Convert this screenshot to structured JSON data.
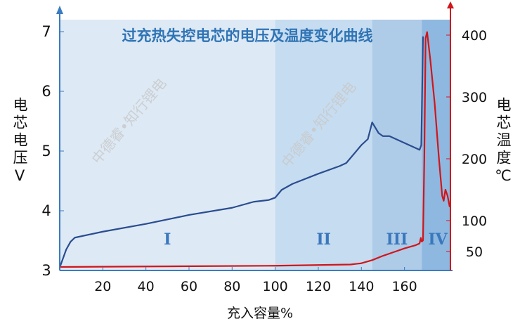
{
  "chart_data": {
    "type": "line",
    "title": "过充热失控电芯的电压及温度变化曲线",
    "xlabel": "充入容量%",
    "ylabel_left": "电芯电压V",
    "ylabel_right": "电芯温度℃",
    "xlim": [
      0,
      181
    ],
    "ylim_left": [
      3,
      7.3
    ],
    "ylim_right": [
      20,
      420
    ],
    "x_ticks": [
      20,
      40,
      60,
      80,
      100,
      120,
      140,
      160
    ],
    "y_left_ticks": [
      3,
      4,
      5,
      6,
      7
    ],
    "y_right_ticks": [
      50,
      100,
      200,
      300,
      400
    ],
    "regions": [
      {
        "label": "I",
        "from": 0,
        "to": 100,
        "color": "#dde9f5"
      },
      {
        "label": "II",
        "from": 100,
        "to": 145,
        "color": "#c6dcf0"
      },
      {
        "label": "III",
        "from": 145,
        "to": 168,
        "color": "#aecbe8"
      },
      {
        "label": "IV",
        "from": 168,
        "to": 181,
        "color": "#8fb8e0"
      }
    ],
    "series": [
      {
        "axis": "left",
        "color": "#2a4d8f",
        "points": [
          [
            0,
            3.05
          ],
          [
            1.5,
            3.2
          ],
          [
            3,
            3.35
          ],
          [
            5,
            3.48
          ],
          [
            7,
            3.55
          ],
          [
            20,
            3.65
          ],
          [
            40,
            3.78
          ],
          [
            60,
            3.93
          ],
          [
            80,
            4.05
          ],
          [
            90,
            4.15
          ],
          [
            97,
            4.18
          ],
          [
            100,
            4.22
          ],
          [
            103,
            4.35
          ],
          [
            108,
            4.45
          ],
          [
            120,
            4.62
          ],
          [
            130,
            4.75
          ],
          [
            133,
            4.8
          ],
          [
            140,
            5.1
          ],
          [
            143,
            5.2
          ],
          [
            145,
            5.48
          ],
          [
            148,
            5.3
          ],
          [
            150,
            5.25
          ],
          [
            153,
            5.25
          ],
          [
            167,
            5.02
          ],
          [
            167.8,
            5.1
          ],
          [
            168.6,
            6.92
          ]
        ]
      },
      {
        "axis": "right",
        "color": "#d0161a",
        "points": [
          [
            0,
            25
          ],
          [
            50,
            26
          ],
          [
            100,
            27
          ],
          [
            135,
            29
          ],
          [
            140,
            31
          ],
          [
            145,
            36
          ],
          [
            150,
            43
          ],
          [
            155,
            49
          ],
          [
            160,
            55
          ],
          [
            165,
            60
          ],
          [
            167,
            63
          ],
          [
            167.6,
            72
          ],
          [
            168,
            66
          ],
          [
            168.6,
            68
          ],
          [
            169.2,
            200
          ],
          [
            169.8,
            395
          ],
          [
            170.5,
            405
          ],
          [
            172,
            360
          ],
          [
            174,
            290
          ],
          [
            176,
            200
          ],
          [
            177.5,
            140
          ],
          [
            178.2,
            132
          ],
          [
            179,
            150
          ],
          [
            180,
            140
          ],
          [
            181,
            122
          ]
        ]
      }
    ]
  },
  "watermark": "中德睿•知行锂电"
}
